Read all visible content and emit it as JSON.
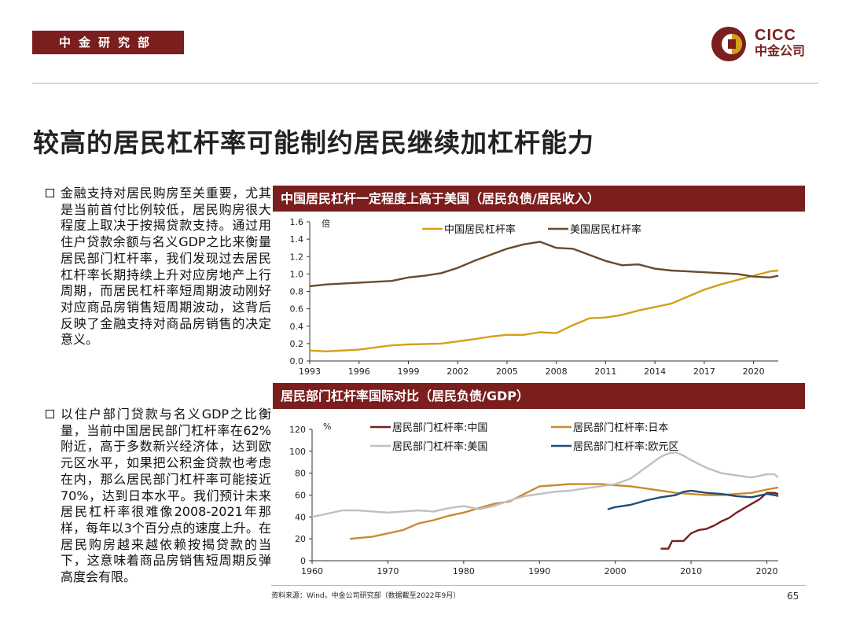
{
  "header": {
    "department": "中金研究部",
    "logo_en": "CICC",
    "logo_cn": "中金公司"
  },
  "title": "较高的居民杠杆率可能制约居民继续加杠杆能力",
  "bullets": [
    "金融支持对居民购房至关重要，尤其是当前首付比例较低，居民购房很大程度上取决于按揭贷款支持。通过用住户贷款余额与名义GDP之比来衡量居民部门杠杆率，我们发现过去居民杠杆率长期持续上升对应房地产上行周期，而居民杠杆率短周期波动刚好对应商品房销售短周期波动，这背后反映了金融支持对商品房销售的决定意义。",
    "以住户部门贷款与名义GDP之比衡量，当前中国居民部门杠杆率在62%附近，高于多数新兴经济体，达到欧元区水平，如果把公积金贷款也考虑在内，那么居民部门杠杆率可能接近70%，达到日本水平。我们预计未来居民杠杆率很难像2008-2021年那样，每年以3个百分点的速度上升。在居民购房越来越依赖按揭贷款的当下，这意味着商品房销售短周期反弹高度会有限。"
  ],
  "footer": {
    "source": "资料来源：Wind，中金公司研究部（数据截至2022年9月）",
    "page": "65"
  },
  "colors": {
    "brand": "#7a1e1e",
    "china": "#d4a017",
    "us_chart1": "#6b4a2b",
    "china2": "#7a1e1e",
    "japan": "#c98a2e",
    "us2": "#c0c0c0",
    "euro": "#1f4e79"
  },
  "chart_data": [
    {
      "type": "line",
      "title": "中国居民杠杆一定程度上高于美国（居民负债/居民收入）",
      "ylabel": "倍",
      "ylim": [
        0,
        1.6
      ],
      "yticks": [
        "0.0",
        "0.2",
        "0.4",
        "0.6",
        "0.8",
        "1.0",
        "1.2",
        "1.4",
        "1.6"
      ],
      "xlim": [
        1993,
        2021.5
      ],
      "xticks": [
        "1993",
        "1996",
        "1999",
        "2002",
        "2005",
        "2008",
        "2011",
        "2014",
        "2017",
        "2020"
      ],
      "series": [
        {
          "name": "中国居民杠杆率",
          "color": "#d4a017",
          "x": [
            1993,
            1994,
            1996,
            1998,
            1999,
            2001,
            2003,
            2004,
            2005,
            2006,
            2007,
            2008,
            2009,
            2010,
            2011,
            2012,
            2013,
            2014,
            2015,
            2016,
            2017,
            2018,
            2019,
            2020,
            2021,
            2021.5
          ],
          "y": [
            0.12,
            0.11,
            0.13,
            0.18,
            0.19,
            0.2,
            0.25,
            0.28,
            0.3,
            0.3,
            0.33,
            0.32,
            0.41,
            0.49,
            0.5,
            0.53,
            0.58,
            0.62,
            0.66,
            0.74,
            0.82,
            0.88,
            0.93,
            0.98,
            1.03,
            1.04
          ]
        },
        {
          "name": "美国居民杠杆率",
          "color": "#6b4a2b",
          "x": [
            1993,
            1994,
            1996,
            1998,
            1999,
            2000,
            2001,
            2002,
            2003,
            2004,
            2005,
            2006,
            2007,
            2008,
            2009,
            2010,
            2011,
            2012,
            2013,
            2014,
            2015,
            2016,
            2017,
            2018,
            2019,
            2020,
            2021,
            2021.5
          ],
          "y": [
            0.86,
            0.88,
            0.9,
            0.92,
            0.96,
            0.98,
            1.01,
            1.07,
            1.15,
            1.22,
            1.29,
            1.34,
            1.37,
            1.3,
            1.29,
            1.22,
            1.15,
            1.1,
            1.11,
            1.06,
            1.04,
            1.03,
            1.02,
            1.01,
            1.0,
            0.97,
            0.96,
            0.98
          ]
        }
      ]
    },
    {
      "type": "line",
      "title": "居民部门杠杆率国际对比（居民负债/GDP）",
      "ylabel": "%",
      "ylim": [
        0,
        120
      ],
      "yticks": [
        "0",
        "20",
        "40",
        "60",
        "80",
        "100",
        "120"
      ],
      "xlim": [
        1960,
        2021.5
      ],
      "xticks": [
        "1960",
        "1970",
        "1980",
        "1990",
        "2000",
        "2010",
        "2020"
      ],
      "series": [
        {
          "name": "居民部门杠杆率:中国",
          "color": "#7a1e1e",
          "x": [
            2006,
            2007,
            2007.5,
            2008,
            2009,
            2010,
            2011,
            2012,
            2013,
            2014,
            2015,
            2016,
            2017,
            2018,
            2019,
            2020,
            2021,
            2021.5
          ],
          "y": [
            11,
            11,
            18,
            18,
            18,
            25,
            28,
            29,
            32,
            36,
            39,
            44,
            48,
            52,
            56,
            62,
            62,
            61
          ]
        },
        {
          "name": "居民部门杠杆率:日本",
          "color": "#c98a2e",
          "x": [
            1965,
            1968,
            1970,
            1972,
            1974,
            1976,
            1978,
            1980,
            1982,
            1984,
            1986,
            1988,
            1990,
            1992,
            1994,
            1996,
            1998,
            2000,
            2002,
            2004,
            2006,
            2008,
            2010,
            2012,
            2014,
            2016,
            2018,
            2020,
            2021.5
          ],
          "y": [
            20,
            22,
            25,
            28,
            34,
            37,
            41,
            44,
            48,
            52,
            54,
            61,
            68,
            69,
            70,
            70,
            70,
            69,
            68,
            66,
            64,
            62,
            61,
            60,
            60,
            61,
            62,
            65,
            67
          ]
        },
        {
          "name": "居民部门杠杆率:美国",
          "color": "#c0c0c0",
          "x": [
            1960,
            1962,
            1964,
            1966,
            1968,
            1970,
            1972,
            1974,
            1976,
            1978,
            1980,
            1982,
            1984,
            1986,
            1988,
            1990,
            1992,
            1994,
            1996,
            1998,
            2000,
            2002,
            2004,
            2006,
            2007,
            2008,
            2009,
            2010,
            2012,
            2014,
            2016,
            2018,
            2020,
            2021,
            2021.5
          ],
          "y": [
            40,
            43,
            46,
            46,
            45,
            44,
            45,
            46,
            45,
            48,
            50,
            47,
            50,
            55,
            59,
            61,
            63,
            64,
            66,
            68,
            70,
            75,
            85,
            95,
            98,
            99,
            96,
            92,
            85,
            80,
            78,
            76,
            79,
            79,
            76
          ]
        },
        {
          "name": "居民部门杠杆率:欧元区",
          "color": "#1f4e79",
          "x": [
            1999,
            2000,
            2002,
            2004,
            2006,
            2008,
            2009,
            2010,
            2012,
            2014,
            2016,
            2018,
            2020,
            2021,
            2021.5
          ],
          "y": [
            47,
            49,
            51,
            55,
            58,
            60,
            63,
            64,
            62,
            61,
            59,
            58,
            61,
            60,
            59
          ]
        }
      ]
    }
  ]
}
